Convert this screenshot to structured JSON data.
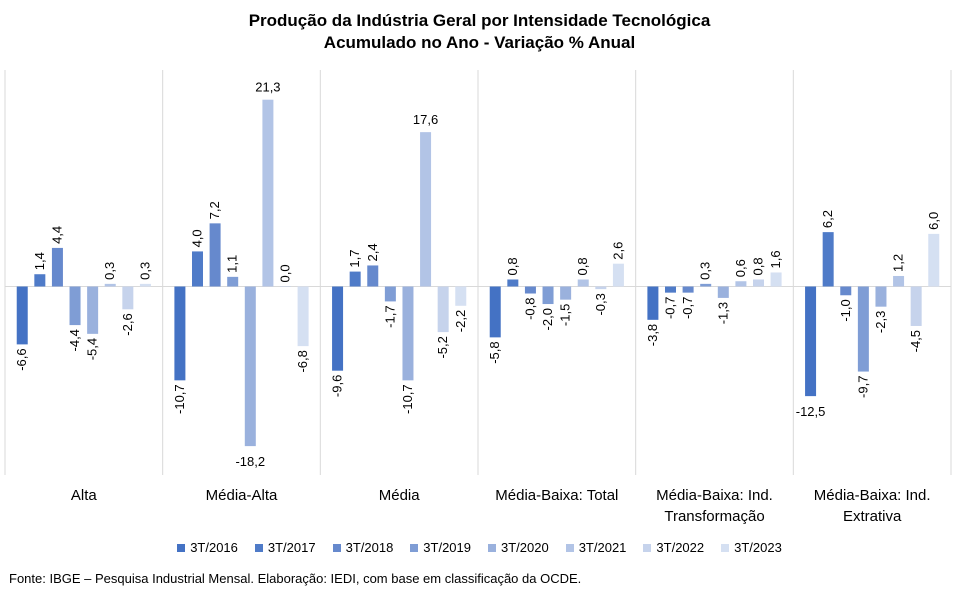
{
  "chart_data": {
    "type": "bar",
    "title": "Produção da Indústria Geral por Intensidade Tecnológica",
    "subtitle": "Acumulado no Ano - Variação % Anual",
    "categories": [
      "Alta",
      "Média-Alta",
      "Média",
      "Média-Baixa: Total",
      "Média-Baixa: Ind. Transformação",
      "Média-Baixa: Ind. Extrativa"
    ],
    "category_lines": [
      [
        "Alta"
      ],
      [
        "Média-Alta"
      ],
      [
        "Média"
      ],
      [
        "Média-Baixa: Total"
      ],
      [
        "Média-Baixa: Ind.",
        "Transformação"
      ],
      [
        "Média-Baixa: Ind.",
        "Extrativa"
      ]
    ],
    "series": [
      {
        "name": "3T/2016",
        "color": "#4472c4",
        "values": [
          -6.6,
          -10.7,
          -9.6,
          -5.8,
          -3.8,
          -12.5
        ]
      },
      {
        "name": "3T/2017",
        "color": "#4f7bc8",
        "values": [
          1.4,
          4.0,
          1.7,
          0.8,
          -0.7,
          6.2
        ]
      },
      {
        "name": "3T/2018",
        "color": "#6689cd",
        "values": [
          4.4,
          7.2,
          2.4,
          -0.8,
          -0.7,
          -1.0
        ]
      },
      {
        "name": "3T/2019",
        "color": "#7f9dd5",
        "values": [
          -4.4,
          1.1,
          -1.7,
          -2.0,
          0.3,
          -9.7
        ]
      },
      {
        "name": "3T/2020",
        "color": "#9ab1dd",
        "values": [
          -5.4,
          -18.2,
          -10.7,
          -1.5,
          -1.3,
          -2.3
        ]
      },
      {
        "name": "3T/2021",
        "color": "#b2c4e6",
        "values": [
          0.3,
          21.3,
          17.6,
          0.8,
          0.6,
          1.2
        ]
      },
      {
        "name": "3T/2022",
        "color": "#c6d3ec",
        "values": [
          -2.6,
          0.0,
          -5.2,
          -0.3,
          0.8,
          -4.5
        ]
      },
      {
        "name": "3T/2023",
        "color": "#d5e0f2",
        "values": [
          0.3,
          -6.8,
          -2.2,
          2.6,
          1.6,
          6.0
        ]
      }
    ],
    "labels": [
      [
        "-6,6",
        "-10,7",
        "-9,6",
        "-5,8",
        "-3,8",
        "-12,5"
      ],
      [
        "1,4",
        "4,0",
        "1,7",
        "0,8",
        "-0,7",
        "6,2"
      ],
      [
        "4,4",
        "7,2",
        "2,4",
        "-0,8",
        "-0,7",
        "-1,0"
      ],
      [
        "-4,4",
        "1,1",
        "-1,7",
        "-2,0",
        "0,3",
        "-9,7"
      ],
      [
        "-5,4",
        "-18,2",
        "-10,7",
        "-1,5",
        "-1,3",
        "-2,3"
      ],
      [
        "0,3",
        "21,3",
        "17,6",
        "0,8",
        "0,6",
        "1,2"
      ],
      [
        "-2,6",
        "0,0",
        "-5,2",
        "-0,3",
        "0,8",
        "-4,5"
      ],
      [
        "0,3",
        "-6,8",
        "-2,2",
        "2,6",
        "1,6",
        "6,0"
      ]
    ],
    "ylim": [
      -22.5,
      24.5
    ],
    "grid": false,
    "legend_position": "bottom"
  },
  "source": "Fonte: IBGE – Pesquisa Industrial Mensal. Elaboração: IEDI, com base em classificação da OCDE."
}
